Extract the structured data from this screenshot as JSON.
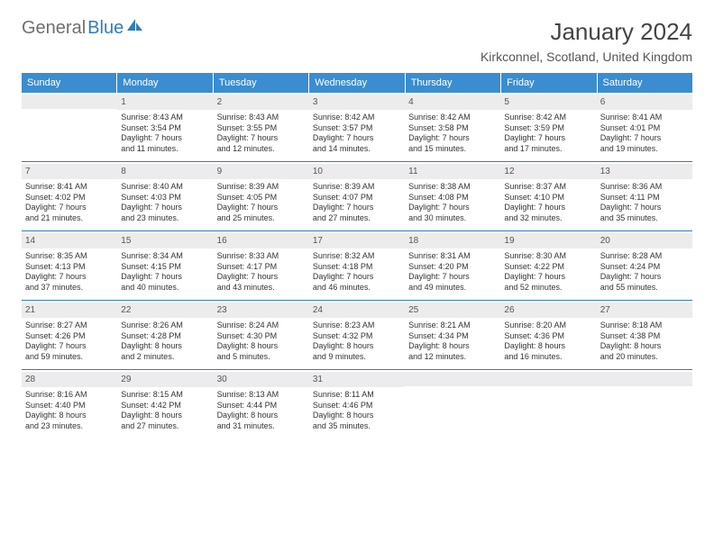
{
  "logo": {
    "text1": "General",
    "text2": "Blue"
  },
  "title": "January 2024",
  "subtitle": "Kirkconnel, Scotland, United Kingdom",
  "colors": {
    "header_bg": "#3a8dd0",
    "header_text": "#ffffff",
    "daynum_bg": "#ececec",
    "week_border": "#2e7dbf",
    "body_text": "#333333",
    "logo_gray": "#6e6e6e",
    "logo_blue": "#2e7dbf"
  },
  "day_headers": [
    "Sunday",
    "Monday",
    "Tuesday",
    "Wednesday",
    "Thursday",
    "Friday",
    "Saturday"
  ],
  "weeks": [
    [
      {
        "n": "",
        "sunrise": "",
        "sunset": "",
        "day1": "",
        "day2": ""
      },
      {
        "n": "1",
        "sunrise": "Sunrise: 8:43 AM",
        "sunset": "Sunset: 3:54 PM",
        "day1": "Daylight: 7 hours",
        "day2": "and 11 minutes."
      },
      {
        "n": "2",
        "sunrise": "Sunrise: 8:43 AM",
        "sunset": "Sunset: 3:55 PM",
        "day1": "Daylight: 7 hours",
        "day2": "and 12 minutes."
      },
      {
        "n": "3",
        "sunrise": "Sunrise: 8:42 AM",
        "sunset": "Sunset: 3:57 PM",
        "day1": "Daylight: 7 hours",
        "day2": "and 14 minutes."
      },
      {
        "n": "4",
        "sunrise": "Sunrise: 8:42 AM",
        "sunset": "Sunset: 3:58 PM",
        "day1": "Daylight: 7 hours",
        "day2": "and 15 minutes."
      },
      {
        "n": "5",
        "sunrise": "Sunrise: 8:42 AM",
        "sunset": "Sunset: 3:59 PM",
        "day1": "Daylight: 7 hours",
        "day2": "and 17 minutes."
      },
      {
        "n": "6",
        "sunrise": "Sunrise: 8:41 AM",
        "sunset": "Sunset: 4:01 PM",
        "day1": "Daylight: 7 hours",
        "day2": "and 19 minutes."
      }
    ],
    [
      {
        "n": "7",
        "sunrise": "Sunrise: 8:41 AM",
        "sunset": "Sunset: 4:02 PM",
        "day1": "Daylight: 7 hours",
        "day2": "and 21 minutes."
      },
      {
        "n": "8",
        "sunrise": "Sunrise: 8:40 AM",
        "sunset": "Sunset: 4:03 PM",
        "day1": "Daylight: 7 hours",
        "day2": "and 23 minutes."
      },
      {
        "n": "9",
        "sunrise": "Sunrise: 8:39 AM",
        "sunset": "Sunset: 4:05 PM",
        "day1": "Daylight: 7 hours",
        "day2": "and 25 minutes."
      },
      {
        "n": "10",
        "sunrise": "Sunrise: 8:39 AM",
        "sunset": "Sunset: 4:07 PM",
        "day1": "Daylight: 7 hours",
        "day2": "and 27 minutes."
      },
      {
        "n": "11",
        "sunrise": "Sunrise: 8:38 AM",
        "sunset": "Sunset: 4:08 PM",
        "day1": "Daylight: 7 hours",
        "day2": "and 30 minutes."
      },
      {
        "n": "12",
        "sunrise": "Sunrise: 8:37 AM",
        "sunset": "Sunset: 4:10 PM",
        "day1": "Daylight: 7 hours",
        "day2": "and 32 minutes."
      },
      {
        "n": "13",
        "sunrise": "Sunrise: 8:36 AM",
        "sunset": "Sunset: 4:11 PM",
        "day1": "Daylight: 7 hours",
        "day2": "and 35 minutes."
      }
    ],
    [
      {
        "n": "14",
        "sunrise": "Sunrise: 8:35 AM",
        "sunset": "Sunset: 4:13 PM",
        "day1": "Daylight: 7 hours",
        "day2": "and 37 minutes."
      },
      {
        "n": "15",
        "sunrise": "Sunrise: 8:34 AM",
        "sunset": "Sunset: 4:15 PM",
        "day1": "Daylight: 7 hours",
        "day2": "and 40 minutes."
      },
      {
        "n": "16",
        "sunrise": "Sunrise: 8:33 AM",
        "sunset": "Sunset: 4:17 PM",
        "day1": "Daylight: 7 hours",
        "day2": "and 43 minutes."
      },
      {
        "n": "17",
        "sunrise": "Sunrise: 8:32 AM",
        "sunset": "Sunset: 4:18 PM",
        "day1": "Daylight: 7 hours",
        "day2": "and 46 minutes."
      },
      {
        "n": "18",
        "sunrise": "Sunrise: 8:31 AM",
        "sunset": "Sunset: 4:20 PM",
        "day1": "Daylight: 7 hours",
        "day2": "and 49 minutes."
      },
      {
        "n": "19",
        "sunrise": "Sunrise: 8:30 AM",
        "sunset": "Sunset: 4:22 PM",
        "day1": "Daylight: 7 hours",
        "day2": "and 52 minutes."
      },
      {
        "n": "20",
        "sunrise": "Sunrise: 8:28 AM",
        "sunset": "Sunset: 4:24 PM",
        "day1": "Daylight: 7 hours",
        "day2": "and 55 minutes."
      }
    ],
    [
      {
        "n": "21",
        "sunrise": "Sunrise: 8:27 AM",
        "sunset": "Sunset: 4:26 PM",
        "day1": "Daylight: 7 hours",
        "day2": "and 59 minutes."
      },
      {
        "n": "22",
        "sunrise": "Sunrise: 8:26 AM",
        "sunset": "Sunset: 4:28 PM",
        "day1": "Daylight: 8 hours",
        "day2": "and 2 minutes."
      },
      {
        "n": "23",
        "sunrise": "Sunrise: 8:24 AM",
        "sunset": "Sunset: 4:30 PM",
        "day1": "Daylight: 8 hours",
        "day2": "and 5 minutes."
      },
      {
        "n": "24",
        "sunrise": "Sunrise: 8:23 AM",
        "sunset": "Sunset: 4:32 PM",
        "day1": "Daylight: 8 hours",
        "day2": "and 9 minutes."
      },
      {
        "n": "25",
        "sunrise": "Sunrise: 8:21 AM",
        "sunset": "Sunset: 4:34 PM",
        "day1": "Daylight: 8 hours",
        "day2": "and 12 minutes."
      },
      {
        "n": "26",
        "sunrise": "Sunrise: 8:20 AM",
        "sunset": "Sunset: 4:36 PM",
        "day1": "Daylight: 8 hours",
        "day2": "and 16 minutes."
      },
      {
        "n": "27",
        "sunrise": "Sunrise: 8:18 AM",
        "sunset": "Sunset: 4:38 PM",
        "day1": "Daylight: 8 hours",
        "day2": "and 20 minutes."
      }
    ],
    [
      {
        "n": "28",
        "sunrise": "Sunrise: 8:16 AM",
        "sunset": "Sunset: 4:40 PM",
        "day1": "Daylight: 8 hours",
        "day2": "and 23 minutes."
      },
      {
        "n": "29",
        "sunrise": "Sunrise: 8:15 AM",
        "sunset": "Sunset: 4:42 PM",
        "day1": "Daylight: 8 hours",
        "day2": "and 27 minutes."
      },
      {
        "n": "30",
        "sunrise": "Sunrise: 8:13 AM",
        "sunset": "Sunset: 4:44 PM",
        "day1": "Daylight: 8 hours",
        "day2": "and 31 minutes."
      },
      {
        "n": "31",
        "sunrise": "Sunrise: 8:11 AM",
        "sunset": "Sunset: 4:46 PM",
        "day1": "Daylight: 8 hours",
        "day2": "and 35 minutes."
      },
      {
        "n": "",
        "sunrise": "",
        "sunset": "",
        "day1": "",
        "day2": ""
      },
      {
        "n": "",
        "sunrise": "",
        "sunset": "",
        "day1": "",
        "day2": ""
      },
      {
        "n": "",
        "sunrise": "",
        "sunset": "",
        "day1": "",
        "day2": ""
      }
    ]
  ]
}
